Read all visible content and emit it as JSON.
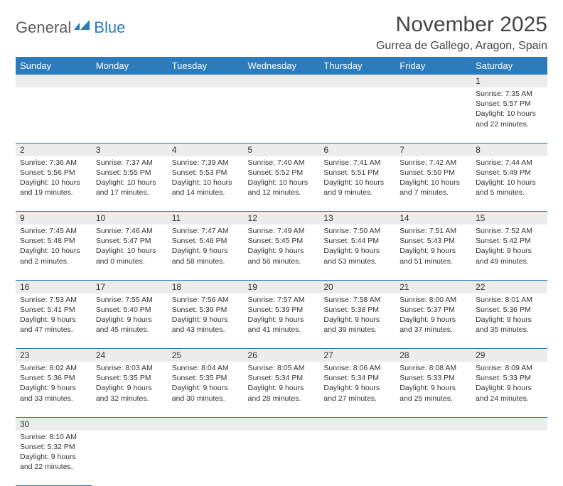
{
  "logo": {
    "part1": "General",
    "part2": "Blue"
  },
  "title": "November 2025",
  "location": "Gurrea de Gallego, Aragon, Spain",
  "colors": {
    "header_bg": "#2b7bbd",
    "header_text": "#ffffff",
    "daynum_bg": "#ececec",
    "border": "#2b7bbd",
    "logo_gray": "#5a5a5a",
    "logo_blue": "#2b7bbd"
  },
  "weekdays": [
    "Sunday",
    "Monday",
    "Tuesday",
    "Wednesday",
    "Thursday",
    "Friday",
    "Saturday"
  ],
  "weeks": [
    [
      null,
      null,
      null,
      null,
      null,
      null,
      {
        "n": "1",
        "sr": "7:35 AM",
        "ss": "5:57 PM",
        "dl": "10 hours and 22 minutes."
      }
    ],
    [
      {
        "n": "2",
        "sr": "7:36 AM",
        "ss": "5:56 PM",
        "dl": "10 hours and 19 minutes."
      },
      {
        "n": "3",
        "sr": "7:37 AM",
        "ss": "5:55 PM",
        "dl": "10 hours and 17 minutes."
      },
      {
        "n": "4",
        "sr": "7:39 AM",
        "ss": "5:53 PM",
        "dl": "10 hours and 14 minutes."
      },
      {
        "n": "5",
        "sr": "7:40 AM",
        "ss": "5:52 PM",
        "dl": "10 hours and 12 minutes."
      },
      {
        "n": "6",
        "sr": "7:41 AM",
        "ss": "5:51 PM",
        "dl": "10 hours and 9 minutes."
      },
      {
        "n": "7",
        "sr": "7:42 AM",
        "ss": "5:50 PM",
        "dl": "10 hours and 7 minutes."
      },
      {
        "n": "8",
        "sr": "7:44 AM",
        "ss": "5:49 PM",
        "dl": "10 hours and 5 minutes."
      }
    ],
    [
      {
        "n": "9",
        "sr": "7:45 AM",
        "ss": "5:48 PM",
        "dl": "10 hours and 2 minutes."
      },
      {
        "n": "10",
        "sr": "7:46 AM",
        "ss": "5:47 PM",
        "dl": "10 hours and 0 minutes."
      },
      {
        "n": "11",
        "sr": "7:47 AM",
        "ss": "5:46 PM",
        "dl": "9 hours and 58 minutes."
      },
      {
        "n": "12",
        "sr": "7:49 AM",
        "ss": "5:45 PM",
        "dl": "9 hours and 56 minutes."
      },
      {
        "n": "13",
        "sr": "7:50 AM",
        "ss": "5:44 PM",
        "dl": "9 hours and 53 minutes."
      },
      {
        "n": "14",
        "sr": "7:51 AM",
        "ss": "5:43 PM",
        "dl": "9 hours and 51 minutes."
      },
      {
        "n": "15",
        "sr": "7:52 AM",
        "ss": "5:42 PM",
        "dl": "9 hours and 49 minutes."
      }
    ],
    [
      {
        "n": "16",
        "sr": "7:53 AM",
        "ss": "5:41 PM",
        "dl": "9 hours and 47 minutes."
      },
      {
        "n": "17",
        "sr": "7:55 AM",
        "ss": "5:40 PM",
        "dl": "9 hours and 45 minutes."
      },
      {
        "n": "18",
        "sr": "7:56 AM",
        "ss": "5:39 PM",
        "dl": "9 hours and 43 minutes."
      },
      {
        "n": "19",
        "sr": "7:57 AM",
        "ss": "5:39 PM",
        "dl": "9 hours and 41 minutes."
      },
      {
        "n": "20",
        "sr": "7:58 AM",
        "ss": "5:38 PM",
        "dl": "9 hours and 39 minutes."
      },
      {
        "n": "21",
        "sr": "8:00 AM",
        "ss": "5:37 PM",
        "dl": "9 hours and 37 minutes."
      },
      {
        "n": "22",
        "sr": "8:01 AM",
        "ss": "5:36 PM",
        "dl": "9 hours and 35 minutes."
      }
    ],
    [
      {
        "n": "23",
        "sr": "8:02 AM",
        "ss": "5:36 PM",
        "dl": "9 hours and 33 minutes."
      },
      {
        "n": "24",
        "sr": "8:03 AM",
        "ss": "5:35 PM",
        "dl": "9 hours and 32 minutes."
      },
      {
        "n": "25",
        "sr": "8:04 AM",
        "ss": "5:35 PM",
        "dl": "9 hours and 30 minutes."
      },
      {
        "n": "26",
        "sr": "8:05 AM",
        "ss": "5:34 PM",
        "dl": "9 hours and 28 minutes."
      },
      {
        "n": "27",
        "sr": "8:06 AM",
        "ss": "5:34 PM",
        "dl": "9 hours and 27 minutes."
      },
      {
        "n": "28",
        "sr": "8:08 AM",
        "ss": "5:33 PM",
        "dl": "9 hours and 25 minutes."
      },
      {
        "n": "29",
        "sr": "8:09 AM",
        "ss": "5:33 PM",
        "dl": "9 hours and 24 minutes."
      }
    ],
    [
      {
        "n": "30",
        "sr": "8:10 AM",
        "ss": "5:32 PM",
        "dl": "9 hours and 22 minutes."
      },
      null,
      null,
      null,
      null,
      null,
      null
    ]
  ],
  "labels": {
    "sunrise": "Sunrise:",
    "sunset": "Sunset:",
    "daylight": "Daylight:"
  }
}
